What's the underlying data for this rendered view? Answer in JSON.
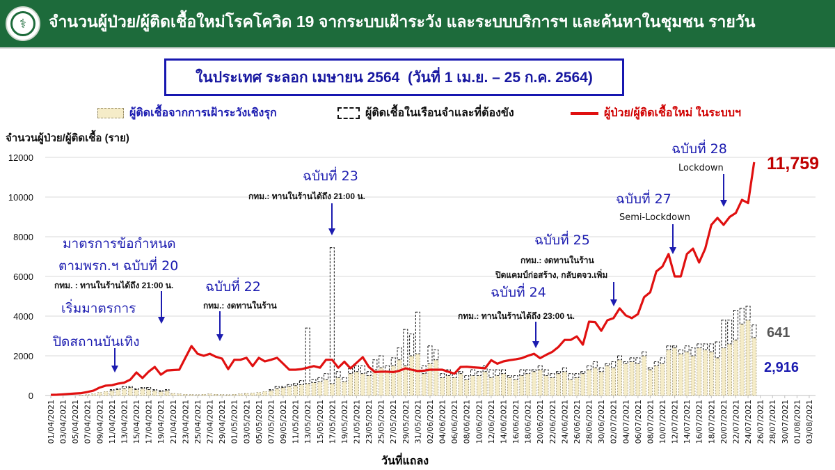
{
  "header": {
    "title": "จำนวนผู้ป่วย/ผู้ติดเชื้อใหม่โรคโควิด 19 จากระบบเฝ้าระวัง และระบบบริการฯ และค้นหาในชุมชน รายวัน",
    "logo_icon": "ministry-of-public-health-seal",
    "color": "#1d6b3b"
  },
  "subtitle": "ในประเทศ ระลอก เมษายน 2564  (วันที่ 1 เม.ย. – 25 ก.ค. 2564)",
  "annotations": {
    "a20_l1": "มาตรการข้อกำหนด",
    "a20_l2": "ตามพรก.ฯ ฉบับที่ 20",
    "a20_note": "กทม. : ทานในร้านได้ถึง 21:00 น.",
    "aent_l1": "เริ่มมาตรการ",
    "aent_l2": "ปิดสถานบันเทิง",
    "a22": "ฉบับที่ 22",
    "a22_note": "กทม.: งดทานในร้าน",
    "a23": "ฉบับที่ 23",
    "a23_note": "กทม.: ทานในร้านได้ถึง 21:00 น.",
    "a24": "ฉบับที่ 24",
    "a24_note": "กทม.: ทานในร้านได้ถึง 23:00 น.",
    "a25": "ฉบับที่ 25",
    "a25_note1": "กทม.: งดทานในร้าน",
    "a25_note2": "ปิดแคมป์ก่อสร้าง, กลับตจว.เพิ่ม",
    "a27": "ฉบับที่ 27",
    "a27_note": "Semi-Lockdown",
    "a28": "ฉบับที่ 28",
    "a28_note": "Lockdown"
  },
  "callouts": {
    "line_last": "11,759",
    "prison_last": "641",
    "proactive_last": "2,916"
  },
  "chart_data": {
    "type": "bar+line",
    "title": "จำนวนผู้ป่วย/ผู้ติดเชื้อใหม่โรคโควิด 19 จากระบบเฝ้าระวัง และระบบบริการฯ และค้นหาในชุมชน รายวัน",
    "subtitle": "ในประเทศ ระลอก เมษายน 2564  (วันที่ 1 เม.ย. – 25 ก.ค. 2564)",
    "ylabel": "จำนวนผู้ป่วย/ผู้ติดเชื้อ (ราย)",
    "xlabel": "วันที่แถลง",
    "ylim": [
      0,
      12000
    ],
    "yticks": [
      0,
      2000,
      4000,
      6000,
      8000,
      10000,
      12000
    ],
    "grid": true,
    "legend_position": "top",
    "x_range": [
      "01/04/2021",
      "03/08/2021"
    ],
    "xtick_labels": [
      "01/04/2021",
      "03/04/2021",
      "05/04/2021",
      "07/04/2021",
      "09/04/2021",
      "11/04/2021",
      "13/04/2021",
      "15/04/2021",
      "17/04/2021",
      "19/04/2021",
      "21/04/2021",
      "23/04/2021",
      "25/04/2021",
      "27/04/2021",
      "29/04/2021",
      "01/05/2021",
      "03/05/2021",
      "05/05/2021",
      "07/05/2021",
      "09/05/2021",
      "11/05/2021",
      "13/05/2021",
      "15/05/2021",
      "17/05/2021",
      "19/05/2021",
      "21/05/2021",
      "23/05/2021",
      "25/05/2021",
      "27/05/2021",
      "29/05/2021",
      "31/05/2021",
      "02/06/2021",
      "04/06/2021",
      "06/06/2021",
      "08/06/2021",
      "10/06/2021",
      "12/06/2021",
      "14/06/2021",
      "16/06/2021",
      "18/06/2021",
      "20/06/2021",
      "22/06/2021",
      "24/06/2021",
      "26/06/2021",
      "28/06/2021",
      "30/06/2021",
      "02/07/2021",
      "04/07/2021",
      "06/07/2021",
      "08/07/2021",
      "10/07/2021",
      "12/07/2021",
      "14/07/2021",
      "16/07/2021",
      "18/07/2021",
      "20/07/2021",
      "22/07/2021",
      "24/07/2021",
      "26/07/2021",
      "28/07/2021",
      "30/07/2021",
      "01/08/2021",
      "03/08/2021"
    ],
    "x_start": "01/04/2021",
    "x_end_data": "25/07/2021",
    "series": [
      {
        "name": "ผู้ติดเชื้อจากการเฝ้าระวังเชิงรุก",
        "type": "bar-stacked",
        "color": "#f5ecc8",
        "values": [
          0,
          0,
          0,
          0,
          0,
          20,
          40,
          80,
          150,
          200,
          250,
          300,
          350,
          400,
          300,
          350,
          300,
          250,
          200,
          250,
          100,
          80,
          60,
          50,
          40,
          60,
          80,
          60,
          50,
          40,
          60,
          80,
          100,
          120,
          150,
          200,
          250,
          350,
          400,
          450,
          500,
          550,
          600,
          650,
          700,
          800,
          600,
          900,
          700,
          1100,
          1200,
          1100,
          1000,
          1300,
          1400,
          1200,
          1500,
          1800,
          1500,
          2000,
          2100,
          1100,
          1600,
          1800,
          900,
          1000,
          900,
          1100,
          800,
          1000,
          1000,
          1200,
          900,
          1000,
          1100,
          900,
          800,
          1000,
          1100,
          1200,
          1300,
          1000,
          900,
          1100,
          1200,
          800,
          900,
          1100,
          1300,
          1400,
          1200,
          1500,
          1400,
          1800,
          1600,
          1700,
          1600,
          2000,
          1300,
          1500,
          1600,
          2300,
          2400,
          2100,
          2200,
          2000,
          2400,
          2300,
          2200,
          1900,
          2400,
          2600,
          2800,
          3600,
          3800,
          2916
        ]
      },
      {
        "name": "ผู้ติดเชื้อในเรือนจำและที่ต้องขัง",
        "type": "bar-stacked",
        "color": "#ffffff",
        "values": [
          0,
          0,
          0,
          0,
          0,
          0,
          0,
          0,
          0,
          0,
          50,
          50,
          100,
          50,
          50,
          50,
          100,
          50,
          50,
          50,
          0,
          0,
          0,
          0,
          0,
          0,
          0,
          0,
          0,
          0,
          0,
          0,
          0,
          0,
          0,
          0,
          50,
          100,
          50,
          100,
          100,
          200,
          2800,
          150,
          200,
          300,
          6853,
          300,
          200,
          250,
          300,
          400,
          200,
          500,
          600,
          300,
          400,
          600,
          1830,
          1100,
          2100,
          400,
          900,
          500,
          200,
          300,
          200,
          100,
          200,
          300,
          200,
          300,
          400,
          300,
          200,
          100,
          200,
          300,
          200,
          100,
          200,
          300,
          200,
          100,
          200,
          300,
          200,
          100,
          200,
          300,
          200,
          100,
          300,
          200,
          100,
          200,
          300,
          200,
          100,
          200,
          300,
          200,
          100,
          200,
          300,
          400,
          200,
          300,
          400,
          800,
          1400,
          1200,
          1500,
          800,
          700,
          641
        ]
      },
      {
        "name": "ผู้ป่วย/ผู้ติดเชื้อใหม่ ในระบบฯ",
        "type": "line",
        "color": "#e01010",
        "values": [
          30,
          40,
          60,
          80,
          100,
          120,
          180,
          250,
          400,
          500,
          520,
          600,
          650,
          800,
          1160,
          880,
          1200,
          1440,
          1050,
          1260,
          1280,
          1300,
          1900,
          2490,
          2100,
          2000,
          2100,
          1950,
          1860,
          1330,
          1800,
          1800,
          1900,
          1480,
          1900,
          1720,
          1800,
          1900,
          1600,
          1300,
          1300,
          1330,
          1400,
          1480,
          1400,
          1800,
          1800,
          1400,
          1700,
          1370,
          1650,
          1930,
          1440,
          1180,
          1200,
          1200,
          1180,
          1250,
          1370,
          1300,
          1230,
          1250,
          1300,
          1300,
          1300,
          1200,
          1100,
          1440,
          1450,
          1420,
          1400,
          1370,
          1780,
          1600,
          1720,
          1780,
          1820,
          1880,
          2000,
          2100,
          1880,
          2050,
          2200,
          2450,
          2800,
          2800,
          2980,
          2560,
          3720,
          3700,
          3260,
          3790,
          3900,
          4390,
          4040,
          3900,
          4100,
          4950,
          5200,
          6250,
          6500,
          7130,
          6000,
          6000,
          7130,
          7400,
          6700,
          7400,
          8600,
          8950,
          8600,
          9000,
          9200,
          9860,
          9700,
          11759
        ]
      }
    ]
  }
}
